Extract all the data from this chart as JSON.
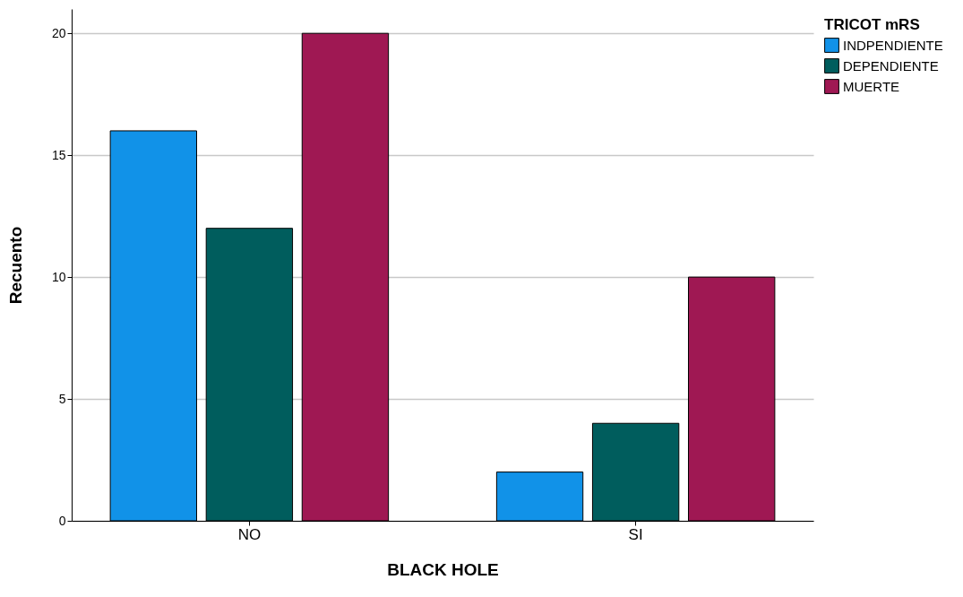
{
  "chart_data": {
    "type": "bar",
    "xlabel": "BLACK HOLE",
    "ylabel": "Recuento",
    "legend_title": "TRICOT mRS",
    "categories": [
      "NO",
      "SI"
    ],
    "series": [
      {
        "name": "INDPENDIENTE",
        "color": "#1192e8",
        "values": [
          16,
          2
        ]
      },
      {
        "name": "DEPENDIENTE",
        "color": "#005d5d",
        "values": [
          12,
          4
        ]
      },
      {
        "name": "MUERTE",
        "color": "#9f1853",
        "values": [
          20,
          10
        ]
      }
    ],
    "ylim": [
      0,
      21
    ],
    "yticks": [
      0,
      5,
      10,
      15,
      20
    ],
    "grid": "y",
    "legend": "top right"
  }
}
